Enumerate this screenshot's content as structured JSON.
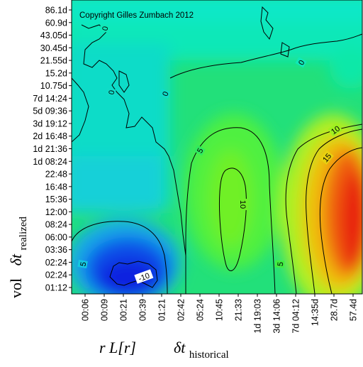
{
  "chart_data": {
    "type": "heatmap",
    "copyright": "Copyright Gilles Zumbach 2012",
    "y_ticks": [
      "86.1d",
      "60.9d",
      "43.05d",
      "30.45d",
      "21.55d",
      "15.2d",
      "10.75d",
      "7d 14:24",
      "5d 09:36",
      "3d 19:12",
      "2d 16:48",
      "1d 21:36",
      "1d 08:24",
      "22:48",
      "16:48",
      "15:36",
      "12:00",
      "08:24",
      "06:00",
      "03:36",
      "02:24",
      "02:24",
      "01:12"
    ],
    "x_ticks": [
      "00:06",
      "00:09",
      "00:21",
      "00:39",
      "01:21",
      "02:42",
      "05:24",
      "10:45",
      "21:33",
      "1d 19:03",
      "3d 14:06",
      "7d 04:12",
      "14:35d",
      "28.7d",
      "57.4d"
    ],
    "ylabel": {
      "main": "vol",
      "delta": "δt",
      "sub": "realized"
    },
    "xlabel": {
      "main": "r L[r]",
      "delta": "δt",
      "sub": "historical"
    },
    "contour_labels": [
      "0",
      "0",
      "0",
      "0",
      "5",
      "5",
      "5",
      "10",
      "10",
      "15",
      "-10"
    ],
    "colorscale": {
      "low": "#0000ff",
      "mid": "#00ff00",
      "high": "#ff0000"
    }
  }
}
